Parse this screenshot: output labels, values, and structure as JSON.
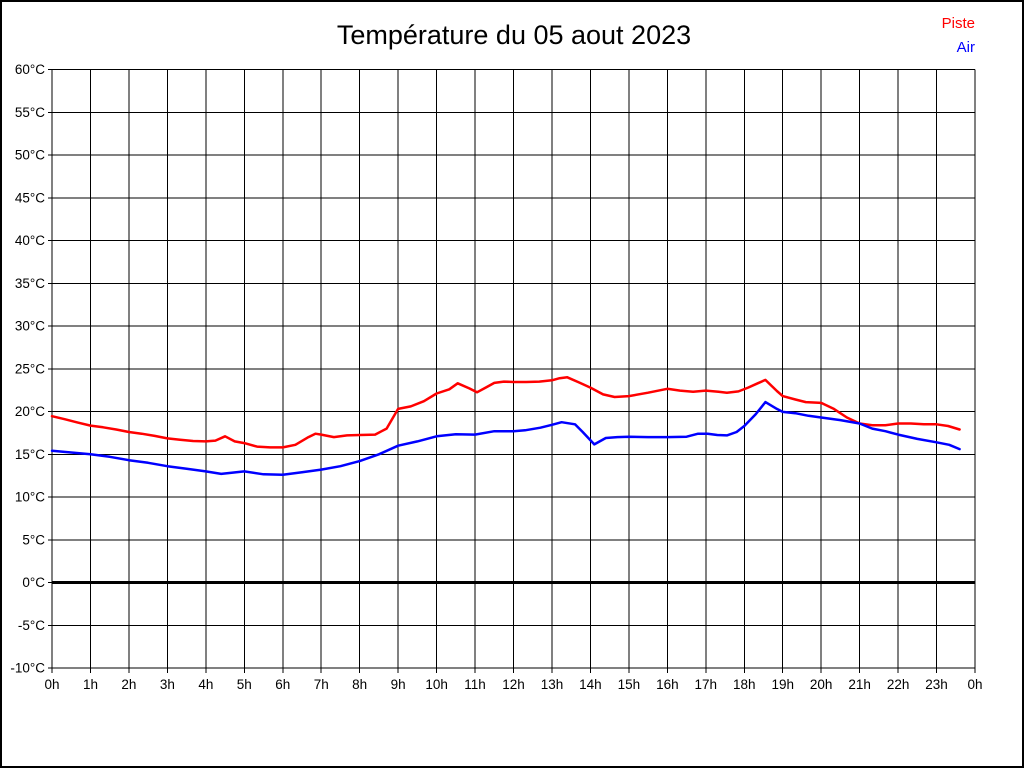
{
  "page": {
    "title": "Température du 05 aout 2023",
    "legend": [
      {
        "id": "piste",
        "label": "Piste",
        "color": "#ff0000"
      },
      {
        "id": "air",
        "label": "Air",
        "color": "#0000ff"
      }
    ]
  },
  "chart_data": {
    "type": "line",
    "title": "Température du 05 aout 2023",
    "xlabel": "",
    "ylabel": "",
    "xlim": [
      0,
      24
    ],
    "ylim": [
      -10,
      60
    ],
    "grid": true,
    "legend_position": "top-right",
    "x_tick_labels": [
      "0h",
      "1h",
      "2h",
      "3h",
      "4h",
      "5h",
      "6h",
      "7h",
      "8h",
      "9h",
      "10h",
      "11h",
      "12h",
      "13h",
      "14h",
      "15h",
      "16h",
      "17h",
      "18h",
      "19h",
      "20h",
      "21h",
      "22h",
      "23h",
      "0h"
    ],
    "y_tick_values": [
      60,
      55,
      50,
      45,
      40,
      35,
      30,
      25,
      20,
      15,
      10,
      5,
      0,
      -5,
      -10
    ],
    "y_tick_labels": [
      "60°C",
      "55°C",
      "50°C",
      "45°C",
      "40°C",
      "35°C",
      "30°C",
      "25°C",
      "20°C",
      "15°C",
      "10°C",
      "5°C",
      "0°C",
      "-5°C",
      "-10°C"
    ],
    "zero_line": {
      "value": 0,
      "color": "#000000",
      "width": 3
    },
    "grid_color": "#000000",
    "series": [
      {
        "name": "Piste",
        "color": "#ff0000",
        "points": [
          [
            0,
            19.45
          ],
          [
            0.33,
            19.1
          ],
          [
            0.67,
            18.7
          ],
          [
            1,
            18.35
          ],
          [
            1.33,
            18.15
          ],
          [
            1.67,
            17.9
          ],
          [
            2,
            17.6
          ],
          [
            2.33,
            17.4
          ],
          [
            2.67,
            17.15
          ],
          [
            3,
            16.85
          ],
          [
            3.33,
            16.7
          ],
          [
            3.67,
            16.55
          ],
          [
            4,
            16.5
          ],
          [
            4.25,
            16.6
          ],
          [
            4.5,
            17.1
          ],
          [
            4.75,
            16.5
          ],
          [
            5,
            16.3
          ],
          [
            5.33,
            15.9
          ],
          [
            5.67,
            15.8
          ],
          [
            6,
            15.8
          ],
          [
            6.33,
            16.1
          ],
          [
            6.67,
            17.0
          ],
          [
            6.85,
            17.4
          ],
          [
            7,
            17.3
          ],
          [
            7.33,
            17.0
          ],
          [
            7.67,
            17.2
          ],
          [
            8,
            17.25
          ],
          [
            8.4,
            17.3
          ],
          [
            8.7,
            18.0
          ],
          [
            9,
            20.3
          ],
          [
            9.33,
            20.6
          ],
          [
            9.67,
            21.2
          ],
          [
            10,
            22.1
          ],
          [
            10.33,
            22.6
          ],
          [
            10.55,
            23.3
          ],
          [
            10.85,
            22.7
          ],
          [
            11.05,
            22.25
          ],
          [
            11.3,
            22.85
          ],
          [
            11.5,
            23.35
          ],
          [
            11.75,
            23.5
          ],
          [
            12,
            23.45
          ],
          [
            12.33,
            23.45
          ],
          [
            12.67,
            23.5
          ],
          [
            13,
            23.65
          ],
          [
            13.2,
            23.9
          ],
          [
            13.4,
            24.0
          ],
          [
            13.7,
            23.4
          ],
          [
            14,
            22.8
          ],
          [
            14.33,
            22.0
          ],
          [
            14.63,
            21.7
          ],
          [
            15,
            21.8
          ],
          [
            15.5,
            22.2
          ],
          [
            16,
            22.65
          ],
          [
            16.33,
            22.45
          ],
          [
            16.67,
            22.3
          ],
          [
            17,
            22.45
          ],
          [
            17.33,
            22.3
          ],
          [
            17.55,
            22.2
          ],
          [
            17.85,
            22.35
          ],
          [
            18.1,
            22.8
          ],
          [
            18.35,
            23.3
          ],
          [
            18.55,
            23.7
          ],
          [
            18.85,
            22.4
          ],
          [
            19,
            21.8
          ],
          [
            19.33,
            21.4
          ],
          [
            19.6,
            21.1
          ],
          [
            20,
            21.0
          ],
          [
            20.33,
            20.3
          ],
          [
            20.67,
            19.3
          ],
          [
            21,
            18.6
          ],
          [
            21.33,
            18.4
          ],
          [
            21.67,
            18.4
          ],
          [
            22,
            18.6
          ],
          [
            22.33,
            18.6
          ],
          [
            22.67,
            18.5
          ],
          [
            23,
            18.5
          ],
          [
            23.3,
            18.3
          ],
          [
            23.6,
            17.9
          ]
        ]
      },
      {
        "name": "Air",
        "color": "#0000ff",
        "points": [
          [
            0,
            15.4
          ],
          [
            0.5,
            15.2
          ],
          [
            1,
            15.0
          ],
          [
            1.5,
            14.7
          ],
          [
            2,
            14.3
          ],
          [
            2.5,
            14.0
          ],
          [
            3,
            13.6
          ],
          [
            3.5,
            13.3
          ],
          [
            4,
            13.0
          ],
          [
            4.4,
            12.7
          ],
          [
            4.7,
            12.85
          ],
          [
            5,
            13.0
          ],
          [
            5.5,
            12.65
          ],
          [
            6,
            12.6
          ],
          [
            6.5,
            12.9
          ],
          [
            7,
            13.2
          ],
          [
            7.5,
            13.6
          ],
          [
            8,
            14.2
          ],
          [
            8.5,
            15.0
          ],
          [
            9,
            16.0
          ],
          [
            9.5,
            16.5
          ],
          [
            10,
            17.1
          ],
          [
            10.5,
            17.35
          ],
          [
            11,
            17.3
          ],
          [
            11.5,
            17.7
          ],
          [
            12,
            17.7
          ],
          [
            12.3,
            17.8
          ],
          [
            12.7,
            18.1
          ],
          [
            13,
            18.45
          ],
          [
            13.25,
            18.75
          ],
          [
            13.6,
            18.5
          ],
          [
            13.8,
            17.6
          ],
          [
            14.1,
            16.15
          ],
          [
            14.4,
            16.9
          ],
          [
            14.7,
            17.0
          ],
          [
            15,
            17.05
          ],
          [
            15.5,
            17.0
          ],
          [
            16,
            17.0
          ],
          [
            16.5,
            17.05
          ],
          [
            16.8,
            17.4
          ],
          [
            17.05,
            17.4
          ],
          [
            17.3,
            17.25
          ],
          [
            17.55,
            17.2
          ],
          [
            17.8,
            17.6
          ],
          [
            18,
            18.3
          ],
          [
            18.3,
            19.7
          ],
          [
            18.55,
            21.1
          ],
          [
            18.85,
            20.3
          ],
          [
            19,
            19.95
          ],
          [
            19.33,
            19.8
          ],
          [
            19.67,
            19.5
          ],
          [
            20,
            19.3
          ],
          [
            20.5,
            19.0
          ],
          [
            21,
            18.6
          ],
          [
            21.33,
            18.0
          ],
          [
            21.67,
            17.7
          ],
          [
            22,
            17.3
          ],
          [
            22.5,
            16.8
          ],
          [
            23,
            16.4
          ],
          [
            23.33,
            16.1
          ],
          [
            23.6,
            15.6
          ]
        ]
      }
    ]
  }
}
